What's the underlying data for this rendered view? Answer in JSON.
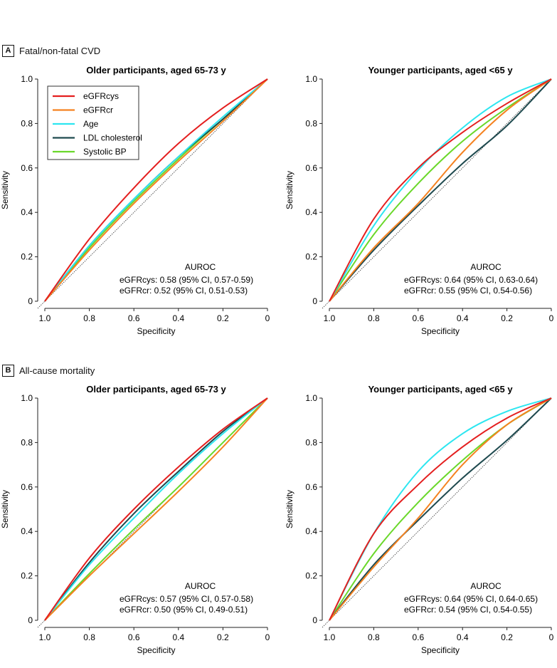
{
  "figure": {
    "panels": [
      {
        "letter": "A",
        "title": "Fatal/non-fatal CVD"
      },
      {
        "letter": "B",
        "title": "All-cause mortality"
      }
    ]
  },
  "legend": [
    {
      "name": "eGFRcys",
      "color": "#e41f1f"
    },
    {
      "name": "eGFRcr",
      "color": "#f58220"
    },
    {
      "name": "Age",
      "color": "#2de6f0"
    },
    {
      "name": "LDL cholesterol",
      "color": "#1f4a4f"
    },
    {
      "name": "Systolic BP",
      "color": "#6ad82a"
    }
  ],
  "chart_data": [
    {
      "type": "line",
      "panel": "A",
      "title": "Older participants, aged 65-73 y",
      "xlabel": "Specificity",
      "ylabel": "Sensitivity",
      "xlim": [
        1.0,
        0
      ],
      "ylim": [
        0,
        1.0
      ],
      "xticks": [
        "1.0",
        "0.8",
        "0.6",
        "0.4",
        "0.2",
        "0"
      ],
      "yticks": [
        "0",
        "0.2",
        "0.4",
        "0.6",
        "0.8",
        "1.0"
      ],
      "show_legend": true,
      "series": [
        {
          "name": "eGFRcys",
          "x": [
            1.0,
            0.8,
            0.6,
            0.4,
            0.2,
            0
          ],
          "y": [
            0,
            0.28,
            0.51,
            0.71,
            0.87,
            1.0
          ]
        },
        {
          "name": "eGFRcr",
          "x": [
            1.0,
            0.8,
            0.6,
            0.4,
            0.2,
            0
          ],
          "y": [
            0,
            0.23,
            0.44,
            0.63,
            0.81,
            1.0
          ]
        },
        {
          "name": "Age",
          "x": [
            1.0,
            0.8,
            0.6,
            0.4,
            0.2,
            0
          ],
          "y": [
            0,
            0.25,
            0.46,
            0.65,
            0.83,
            1.0
          ]
        },
        {
          "name": "LDL cholesterol",
          "x": [
            1.0,
            0.8,
            0.6,
            0.4,
            0.2,
            0
          ],
          "y": [
            0,
            0.25,
            0.46,
            0.65,
            0.82,
            1.0
          ]
        },
        {
          "name": "Systolic BP",
          "x": [
            1.0,
            0.8,
            0.6,
            0.4,
            0.2,
            0
          ],
          "y": [
            0,
            0.24,
            0.45,
            0.64,
            0.82,
            1.0
          ]
        }
      ],
      "auroc": {
        "heading": "AUROC",
        "lines": [
          "eGFRcys: 0.58 (95% CI, 0.57-0.59)",
          "eGFRcr: 0.52 (95% CI, 0.51-0.53)"
        ]
      }
    },
    {
      "type": "line",
      "panel": "A",
      "title": "Younger participants, aged <65 y",
      "xlabel": "Specificity",
      "ylabel": "Sensitivity",
      "xlim": [
        1.0,
        0
      ],
      "ylim": [
        0,
        1.0
      ],
      "xticks": [
        "1.0",
        "0.8",
        "0.6",
        "0.4",
        "0.2",
        "0"
      ],
      "yticks": [
        "0",
        "0.2",
        "0.4",
        "0.6",
        "0.8",
        "1.0"
      ],
      "show_legend": false,
      "series": [
        {
          "name": "eGFRcys",
          "x": [
            1.0,
            0.8,
            0.6,
            0.4,
            0.2,
            0
          ],
          "y": [
            0,
            0.37,
            0.6,
            0.76,
            0.89,
            1.0
          ]
        },
        {
          "name": "eGFRcr",
          "x": [
            1.0,
            0.8,
            0.6,
            0.4,
            0.2,
            0
          ],
          "y": [
            0,
            0.24,
            0.44,
            0.67,
            0.86,
            1.0
          ]
        },
        {
          "name": "Age",
          "x": [
            1.0,
            0.8,
            0.6,
            0.4,
            0.2,
            0
          ],
          "y": [
            0,
            0.34,
            0.59,
            0.78,
            0.92,
            1.0
          ]
        },
        {
          "name": "LDL cholesterol",
          "x": [
            1.0,
            0.8,
            0.6,
            0.4,
            0.2,
            0
          ],
          "y": [
            0,
            0.23,
            0.43,
            0.62,
            0.79,
            1.0
          ]
        },
        {
          "name": "Systolic BP",
          "x": [
            1.0,
            0.8,
            0.6,
            0.4,
            0.2,
            0
          ],
          "y": [
            0,
            0.3,
            0.53,
            0.72,
            0.87,
            1.0
          ]
        }
      ],
      "auroc": {
        "heading": "AUROC",
        "lines": [
          "eGFRcys: 0.64 (95% CI, 0.63-0.64)",
          "eGFRcr: 0.55 (95% CI, 0.54-0.56)"
        ]
      }
    },
    {
      "type": "line",
      "panel": "B",
      "title": "Older participants, aged 65-73 y",
      "xlabel": "Specificity",
      "ylabel": "Sensitivity",
      "xlim": [
        1.0,
        0
      ],
      "ylim": [
        0,
        1.0
      ],
      "xticks": [
        "1.0",
        "0.8",
        "0.6",
        "0.4",
        "0.2",
        "0"
      ],
      "yticks": [
        "0",
        "0.2",
        "0.4",
        "0.6",
        "0.8",
        "1.0"
      ],
      "show_legend": false,
      "series": [
        {
          "name": "eGFRcys",
          "x": [
            1.0,
            0.8,
            0.6,
            0.4,
            0.2,
            0
          ],
          "y": [
            0,
            0.28,
            0.5,
            0.69,
            0.86,
            1.0
          ]
        },
        {
          "name": "eGFRcr",
          "x": [
            1.0,
            0.8,
            0.6,
            0.4,
            0.2,
            0
          ],
          "y": [
            0,
            0.2,
            0.39,
            0.58,
            0.78,
            1.0
          ]
        },
        {
          "name": "Age",
          "x": [
            1.0,
            0.8,
            0.6,
            0.4,
            0.2,
            0
          ],
          "y": [
            0,
            0.25,
            0.46,
            0.66,
            0.84,
            1.0
          ]
        },
        {
          "name": "LDL cholesterol",
          "x": [
            1.0,
            0.8,
            0.6,
            0.4,
            0.2,
            0
          ],
          "y": [
            0,
            0.26,
            0.48,
            0.67,
            0.85,
            1.0
          ]
        },
        {
          "name": "Systolic BP",
          "x": [
            1.0,
            0.8,
            0.6,
            0.4,
            0.2,
            0
          ],
          "y": [
            0,
            0.21,
            0.41,
            0.6,
            0.8,
            1.0
          ]
        }
      ],
      "auroc": {
        "heading": "AUROC",
        "lines": [
          "eGFRcys: 0.57 (95% CI, 0.57-0.58)",
          "eGFRcr: 0.50 (95% CI, 0.49-0.51)"
        ]
      }
    },
    {
      "type": "line",
      "panel": "B",
      "title": "Younger participants, aged <65 y",
      "xlabel": "Specificity",
      "ylabel": "Sensitivity",
      "xlim": [
        1.0,
        0
      ],
      "ylim": [
        0,
        1.0
      ],
      "xticks": [
        "1.0",
        "0.8",
        "0.6",
        "0.4",
        "0.2",
        "0"
      ],
      "yticks": [
        "0",
        "0.2",
        "0.4",
        "0.6",
        "0.8",
        "1.0"
      ],
      "show_legend": false,
      "series": [
        {
          "name": "eGFRcys",
          "x": [
            1.0,
            0.8,
            0.6,
            0.4,
            0.2,
            0
          ],
          "y": [
            0,
            0.39,
            0.61,
            0.78,
            0.91,
            1.0
          ]
        },
        {
          "name": "eGFRcr",
          "x": [
            1.0,
            0.8,
            0.6,
            0.4,
            0.2,
            0
          ],
          "y": [
            0,
            0.24,
            0.46,
            0.7,
            0.88,
            1.0
          ]
        },
        {
          "name": "Age",
          "x": [
            1.0,
            0.8,
            0.6,
            0.4,
            0.2,
            0
          ],
          "y": [
            0,
            0.39,
            0.67,
            0.84,
            0.94,
            1.0
          ]
        },
        {
          "name": "LDL cholesterol",
          "x": [
            1.0,
            0.8,
            0.6,
            0.4,
            0.2,
            0
          ],
          "y": [
            0,
            0.25,
            0.45,
            0.64,
            0.81,
            1.0
          ]
        },
        {
          "name": "Systolic BP",
          "x": [
            1.0,
            0.8,
            0.6,
            0.4,
            0.2,
            0
          ],
          "y": [
            0,
            0.3,
            0.53,
            0.72,
            0.88,
            1.0
          ]
        }
      ],
      "auroc": {
        "heading": "AUROC",
        "lines": [
          "eGFRcys: 0.64 (95% CI, 0.64-0.65)",
          "eGFRcr: 0.54 (95% CI, 0.54-0.55)"
        ]
      }
    }
  ]
}
